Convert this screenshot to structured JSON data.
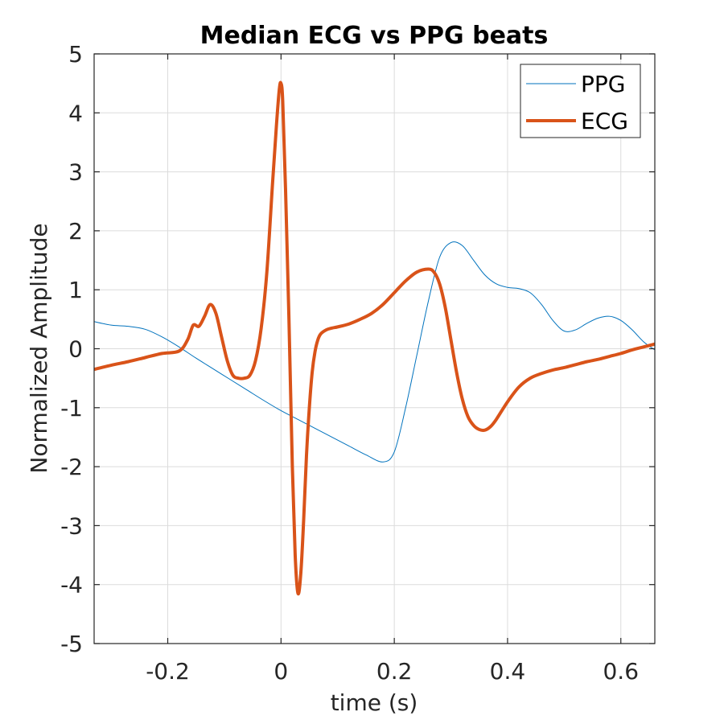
{
  "chart_data": {
    "type": "line",
    "title": "Median ECG vs PPG beats",
    "xlabel": "time (s)",
    "ylabel": "Normalized Amplitude",
    "xlim": [
      -0.33,
      0.66
    ],
    "ylim": [
      -5,
      5
    ],
    "xticks": [
      -0.2,
      0,
      0.2,
      0.4,
      0.6
    ],
    "xtick_labels": [
      "-0.2",
      "0",
      "0.2",
      "0.4",
      "0.6"
    ],
    "yticks": [
      -5,
      -4,
      -3,
      -2,
      -1,
      0,
      1,
      2,
      3,
      4,
      5
    ],
    "ytick_labels": [
      "-5",
      "-4",
      "-3",
      "-2",
      "-1",
      "0",
      "1",
      "2",
      "3",
      "4",
      "5"
    ],
    "grid": true,
    "legend_position": "top-right",
    "series": [
      {
        "name": "PPG",
        "color": "#0072BD",
        "line_style": "thin",
        "x": [
          -0.33,
          -0.3,
          -0.27,
          -0.24,
          -0.21,
          -0.18,
          -0.15,
          -0.12,
          -0.09,
          -0.06,
          -0.03,
          0.0,
          0.03,
          0.06,
          0.09,
          0.12,
          0.15,
          0.18,
          0.2,
          0.22,
          0.24,
          0.26,
          0.28,
          0.3,
          0.32,
          0.34,
          0.36,
          0.38,
          0.4,
          0.42,
          0.44,
          0.46,
          0.48,
          0.5,
          0.52,
          0.54,
          0.56,
          0.58,
          0.6,
          0.62,
          0.64,
          0.66
        ],
        "y": [
          0.46,
          0.4,
          0.38,
          0.33,
          0.2,
          0.03,
          -0.16,
          -0.34,
          -0.52,
          -0.7,
          -0.88,
          -1.05,
          -1.2,
          -1.35,
          -1.5,
          -1.65,
          -1.8,
          -1.92,
          -1.75,
          -1.0,
          -0.1,
          0.8,
          1.55,
          1.8,
          1.75,
          1.5,
          1.25,
          1.1,
          1.04,
          1.02,
          0.95,
          0.75,
          0.48,
          0.3,
          0.32,
          0.43,
          0.52,
          0.55,
          0.48,
          0.32,
          0.12,
          -0.02
        ]
      },
      {
        "name": "ECG",
        "color": "#D95319",
        "line_style": "thick",
        "x": [
          -0.33,
          -0.3,
          -0.27,
          -0.24,
          -0.21,
          -0.18,
          -0.165,
          -0.155,
          -0.145,
          -0.135,
          -0.125,
          -0.115,
          -0.105,
          -0.095,
          -0.085,
          -0.075,
          -0.065,
          -0.055,
          -0.045,
          -0.035,
          -0.025,
          -0.015,
          -0.008,
          -0.003,
          0.0,
          0.003,
          0.008,
          0.014,
          0.02,
          0.025,
          0.03,
          0.035,
          0.04,
          0.045,
          0.05,
          0.055,
          0.06,
          0.065,
          0.07,
          0.08,
          0.09,
          0.1,
          0.12,
          0.14,
          0.16,
          0.18,
          0.2,
          0.22,
          0.24,
          0.26,
          0.27,
          0.28,
          0.29,
          0.3,
          0.31,
          0.32,
          0.33,
          0.34,
          0.35,
          0.36,
          0.37,
          0.38,
          0.4,
          0.42,
          0.44,
          0.46,
          0.48,
          0.5,
          0.52,
          0.54,
          0.56,
          0.58,
          0.6,
          0.62,
          0.64,
          0.66
        ],
        "y": [
          -0.35,
          -0.28,
          -0.22,
          -0.15,
          -0.08,
          -0.04,
          0.15,
          0.4,
          0.38,
          0.55,
          0.75,
          0.6,
          0.2,
          -0.2,
          -0.45,
          -0.5,
          -0.5,
          -0.45,
          -0.2,
          0.35,
          1.3,
          2.8,
          3.8,
          4.4,
          4.5,
          4.2,
          2.7,
          0.5,
          -2.0,
          -3.5,
          -4.15,
          -3.8,
          -2.9,
          -1.8,
          -1.0,
          -0.4,
          -0.05,
          0.15,
          0.25,
          0.32,
          0.35,
          0.37,
          0.42,
          0.5,
          0.6,
          0.75,
          0.95,
          1.15,
          1.3,
          1.35,
          1.3,
          1.1,
          0.7,
          0.15,
          -0.4,
          -0.85,
          -1.15,
          -1.3,
          -1.37,
          -1.38,
          -1.32,
          -1.2,
          -0.9,
          -0.65,
          -0.5,
          -0.42,
          -0.36,
          -0.32,
          -0.27,
          -0.22,
          -0.18,
          -0.13,
          -0.08,
          -0.02,
          0.03,
          0.08
        ]
      }
    ]
  }
}
